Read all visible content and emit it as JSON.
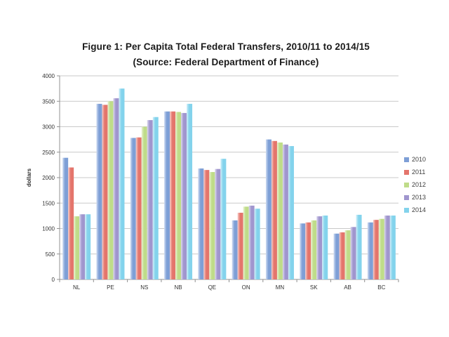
{
  "figure": {
    "title_line1": "Figure 1: Per Capita Total Federal Transfers, 2010/11 to 2014/15",
    "title_line2": "(Source: Federal Department of Finance)"
  },
  "chart_data": {
    "type": "bar",
    "title": "Figure 1: Per Capita Total Federal Transfers, 2010/11 to 2014/15",
    "subtitle": "(Source: Federal Department of Finance)",
    "xlabel": "",
    "ylabel": "dollars",
    "ylim": [
      0,
      4000
    ],
    "ytick_step": 500,
    "yticks": [
      "0",
      "500",
      "1000",
      "1500",
      "2000",
      "2500",
      "3000",
      "3500",
      "4000"
    ],
    "grid": true,
    "legend_position": "right",
    "categories": [
      "NL",
      "PE",
      "NS",
      "NB",
      "QE",
      "ON",
      "MN",
      "SK",
      "AB",
      "BC"
    ],
    "series": [
      {
        "name": "2010",
        "color": "#7e9fd6",
        "color_light": "#cfdcf2",
        "values": [
          2390,
          3450,
          2780,
          3300,
          2180,
          1160,
          2750,
          1100,
          900,
          1120
        ]
      },
      {
        "name": "2011",
        "color": "#e4756c",
        "color_light": "#f7cdc9",
        "values": [
          2200,
          3430,
          2790,
          3300,
          2150,
          1310,
          2720,
          1120,
          925,
          1170
        ]
      },
      {
        "name": "2012",
        "color": "#bfdc89",
        "color_light": "#e9f3d2",
        "values": [
          1240,
          3500,
          3000,
          3290,
          2110,
          1430,
          2690,
          1160,
          965,
          1190
        ]
      },
      {
        "name": "2013",
        "color": "#a096ce",
        "color_light": "#dbd7ee",
        "values": [
          1280,
          3560,
          3130,
          3270,
          2170,
          1450,
          2650,
          1240,
          1030,
          1255
        ]
      },
      {
        "name": "2014",
        "color": "#83d3ec",
        "color_light": "#d1eff9",
        "values": [
          1280,
          3750,
          3190,
          3450,
          2370,
          1390,
          2620,
          1255,
          1270,
          1255
        ]
      }
    ],
    "colors": {
      "gridline": "#c9c9c9",
      "axis": "#919191",
      "tick_text": "#333333",
      "title_text": "#1a1a1a"
    }
  }
}
